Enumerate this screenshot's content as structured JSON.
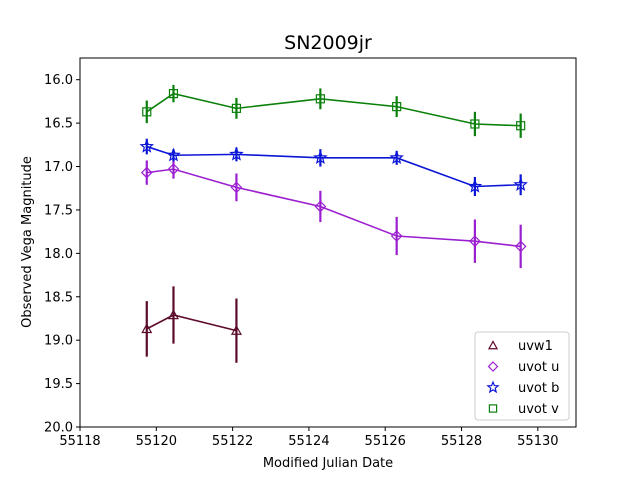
{
  "chart_data": {
    "type": "line",
    "title": "SN2009jr",
    "xlabel": "Modified Julian Date",
    "ylabel": "Observed Vega Magnitude",
    "xlim": [
      55118,
      55131
    ],
    "ylim": [
      20.0,
      15.75
    ],
    "y_inverted": true,
    "xticks": [
      "55118",
      "55120",
      "55122",
      "55124",
      "55126",
      "55128",
      "55130"
    ],
    "yticks": [
      "16.0",
      "16.5",
      "17.0",
      "17.5",
      "18.0",
      "18.5",
      "19.0",
      "19.5",
      "20.0"
    ],
    "grid": false,
    "legend_position": "lower-right",
    "series": [
      {
        "name": "uvw1",
        "marker": "triangle",
        "color": "#5c0a2b",
        "x": [
          55119.75,
          55120.45,
          55122.1
        ],
        "y": [
          18.87,
          18.71,
          18.89
        ],
        "yerr": [
          0.32,
          0.33,
          0.37
        ]
      },
      {
        "name": "uvot u",
        "marker": "diamond",
        "color": "#9b1fd0",
        "x": [
          55119.75,
          55120.45,
          55122.1,
          55124.3,
          55126.3,
          55128.35,
          55129.55
        ],
        "y": [
          17.07,
          17.03,
          17.24,
          17.46,
          17.8,
          17.86,
          17.92
        ],
        "yerr": [
          0.14,
          0.11,
          0.16,
          0.18,
          0.22,
          0.25,
          0.25
        ]
      },
      {
        "name": "uvot b",
        "marker": "star",
        "color": "#0c16d6",
        "x": [
          55119.75,
          55120.45,
          55122.1,
          55124.3,
          55126.3,
          55128.35,
          55129.55
        ],
        "y": [
          16.77,
          16.87,
          16.86,
          16.9,
          16.9,
          17.23,
          17.21
        ],
        "yerr": [
          0.09,
          0.07,
          0.08,
          0.1,
          0.08,
          0.11,
          0.12
        ]
      },
      {
        "name": "uvot v",
        "marker": "square",
        "color": "#0a800a",
        "x": [
          55119.75,
          55120.45,
          55122.1,
          55124.3,
          55126.3,
          55128.35,
          55129.55
        ],
        "y": [
          16.37,
          16.16,
          16.33,
          16.22,
          16.31,
          16.51,
          16.53
        ],
        "yerr": [
          0.13,
          0.1,
          0.12,
          0.12,
          0.12,
          0.14,
          0.14
        ]
      }
    ]
  }
}
